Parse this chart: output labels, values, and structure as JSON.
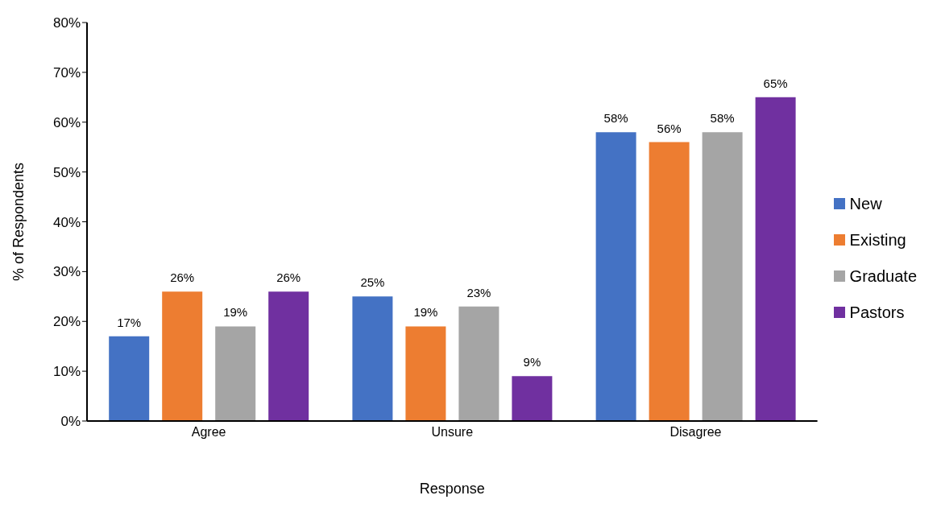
{
  "chart_data": {
    "type": "bar",
    "xlabel": "Response",
    "ylabel": "% of Respondents",
    "categories": [
      "Agree",
      "Unsure",
      "Disagree"
    ],
    "series": [
      {
        "name": "New",
        "color": "#4472c4",
        "values": [
          17,
          25,
          58
        ],
        "value_labels": [
          "17%",
          "25%",
          "58%"
        ]
      },
      {
        "name": "Existing",
        "color": "#ed7d31",
        "values": [
          26,
          19,
          56
        ],
        "value_labels": [
          "26%",
          "19%",
          "56%"
        ]
      },
      {
        "name": "Graduate",
        "color": "#a5a5a5",
        "values": [
          19,
          23,
          58
        ],
        "value_labels": [
          "19%",
          "23%",
          "58%"
        ]
      },
      {
        "name": "Pastors",
        "color": "#7030a0",
        "values": [
          26,
          9,
          65
        ],
        "value_labels": [
          "26%",
          "9%",
          "65%"
        ]
      }
    ],
    "ylim": [
      0,
      80
    ],
    "yticks": [
      {
        "value": 0,
        "label": "0%"
      },
      {
        "value": 10,
        "label": "10%"
      },
      {
        "value": 20,
        "label": "20%"
      },
      {
        "value": 30,
        "label": "30%"
      },
      {
        "value": 40,
        "label": "40%"
      },
      {
        "value": 50,
        "label": "50%"
      },
      {
        "value": 60,
        "label": "60%"
      },
      {
        "value": 70,
        "label": "70%"
      },
      {
        "value": 80,
        "label": "80%"
      }
    ],
    "legend": "right",
    "grid": false
  }
}
